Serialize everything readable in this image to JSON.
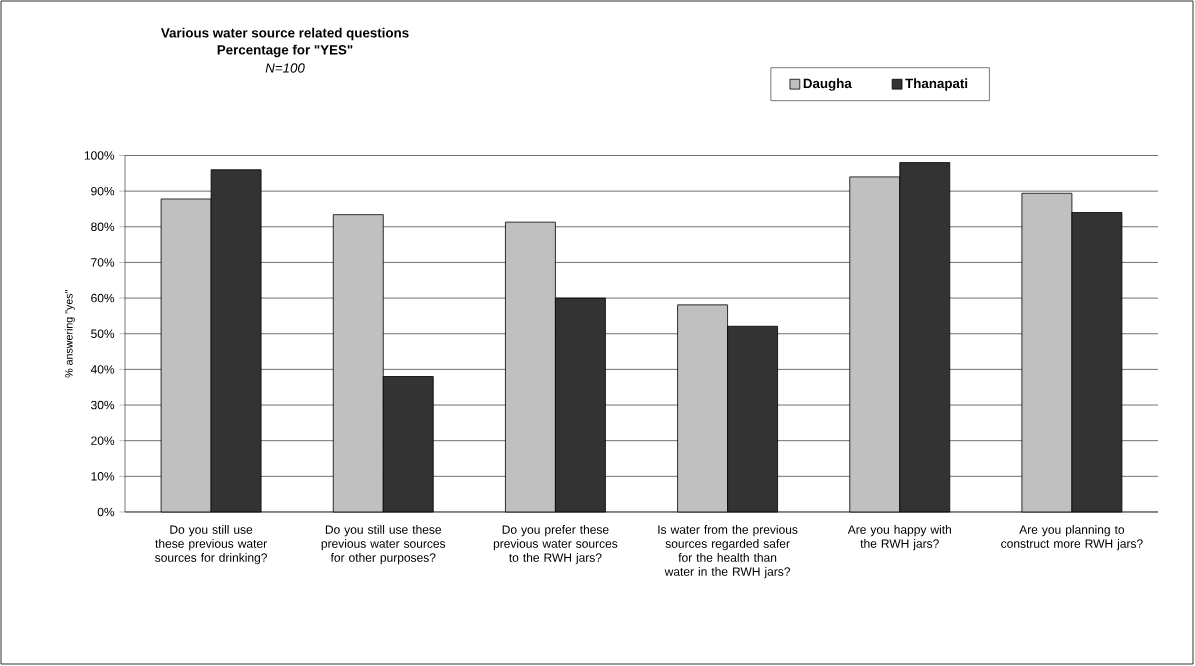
{
  "chart_data": {
    "type": "bar",
    "title": "Various water source related questions",
    "subtitle": "Percentage for \"YES\"",
    "annotations": [
      "N=100"
    ],
    "ylabel": "% answering \"yes\"",
    "categories": [
      "Do you still use these previous water sources for drinking?",
      "Do you still use these previous water sources for other purposes?",
      "Do you prefer these previous water sources to the RWH jars?",
      "Is water from the previous sources regarded safer for the health than water in the RWH jars?",
      "Are you happy with the RWH jars?",
      "Are you planning to construct more RWH jars?"
    ],
    "series": [
      {
        "name": "Daugha",
        "color": "#c0c0c0",
        "values": [
          87.8,
          83.4,
          81.3,
          58.1,
          94,
          89.4
        ]
      },
      {
        "name": "Thanapati",
        "color": "#333333",
        "values": [
          96,
          38,
          60,
          52.1,
          98,
          84
        ]
      }
    ],
    "ylim": [
      0,
      100
    ],
    "yticks": [
      {
        "value": 0,
        "label": "0%"
      },
      {
        "value": 10,
        "label": "10%"
      },
      {
        "value": 20,
        "label": "20%"
      },
      {
        "value": 30,
        "label": "30%"
      },
      {
        "value": 40,
        "label": "40%"
      },
      {
        "value": 50,
        "label": "50%"
      },
      {
        "value": 60,
        "label": "60%"
      },
      {
        "value": 70,
        "label": "70%"
      },
      {
        "value": 80,
        "label": "80%"
      },
      {
        "value": 90,
        "label": "90%"
      },
      {
        "value": 100,
        "label": "100%"
      }
    ],
    "grid": "y",
    "legend": "top right"
  }
}
